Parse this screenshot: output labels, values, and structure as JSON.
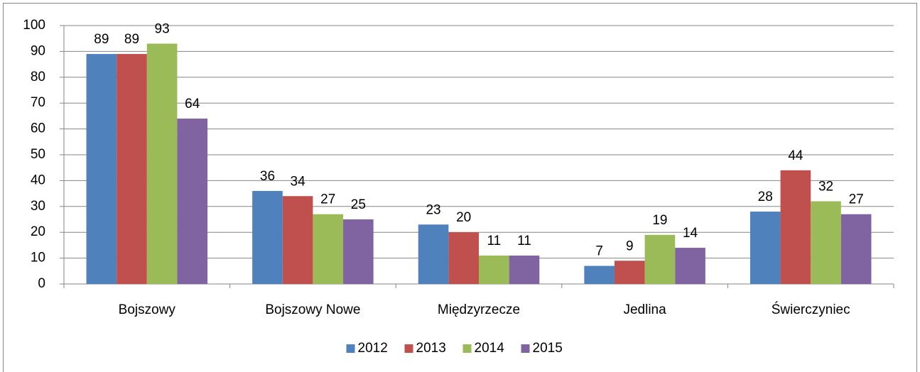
{
  "chart_data": {
    "type": "bar",
    "categories": [
      "Bojszowy",
      "Bojszowy Nowe",
      "Międzyrzecze",
      "Jedlina",
      "Świerczyniec"
    ],
    "series": [
      {
        "name": "2012",
        "color": "#4f81bd",
        "values": [
          89,
          36,
          23,
          7,
          28
        ]
      },
      {
        "name": "2013",
        "color": "#c0504d",
        "values": [
          89,
          34,
          20,
          9,
          44
        ]
      },
      {
        "name": "2014",
        "color": "#9bbb59",
        "values": [
          93,
          27,
          11,
          19,
          32
        ]
      },
      {
        "name": "2015",
        "color": "#8064a2",
        "values": [
          64,
          25,
          11,
          14,
          27
        ]
      }
    ],
    "ylim": [
      0,
      100
    ],
    "yticks": [
      0,
      10,
      20,
      30,
      40,
      50,
      60,
      70,
      80,
      90,
      100
    ],
    "grid": true,
    "legend": "bottom"
  }
}
